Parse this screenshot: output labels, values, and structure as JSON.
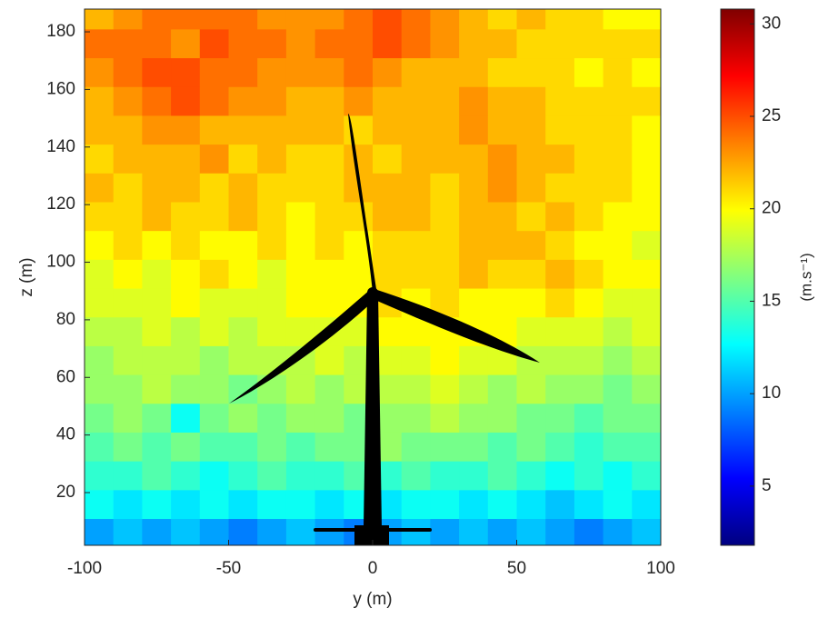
{
  "chart_data": {
    "type": "heatmap",
    "xlabel": "y (m)",
    "ylabel": "z (m)",
    "colorbar_label": "(m.s⁻¹)",
    "x": [
      -95,
      -85,
      -75,
      -65,
      -55,
      -45,
      -35,
      -25,
      -15,
      -5,
      5,
      15,
      25,
      35,
      45,
      55,
      65,
      75,
      85,
      95
    ],
    "y": [
      6,
      16,
      26,
      36,
      46,
      56,
      66,
      76,
      86,
      96,
      106,
      116,
      126,
      136,
      146,
      156,
      166,
      176,
      186
    ],
    "z": [
      [
        10,
        11,
        10,
        11,
        10,
        9,
        10,
        11,
        10,
        9,
        10,
        11,
        10,
        11,
        10,
        11,
        10,
        9,
        10,
        11
      ],
      [
        13,
        12,
        13,
        12,
        13,
        12,
        13,
        13,
        12,
        13,
        12,
        13,
        13,
        12,
        13,
        12,
        11,
        12,
        13,
        12
      ],
      [
        14,
        14,
        15,
        14,
        13,
        14,
        15,
        14,
        14,
        15,
        14,
        15,
        14,
        14,
        15,
        14,
        13,
        14,
        13,
        14
      ],
      [
        15,
        16,
        15,
        16,
        15,
        15,
        16,
        15,
        16,
        16,
        17,
        16,
        16,
        16,
        15,
        16,
        15,
        14,
        15,
        15
      ],
      [
        16,
        17,
        16,
        13,
        16,
        17,
        16,
        17,
        17,
        16,
        17,
        17,
        18,
        17,
        17,
        16,
        16,
        15,
        16,
        16
      ],
      [
        17,
        17,
        18,
        17,
        17,
        16,
        17,
        18,
        17,
        18,
        18,
        18,
        19,
        18,
        17,
        18,
        17,
        17,
        16,
        17
      ],
      [
        17,
        18,
        18,
        18,
        17,
        18,
        18,
        18,
        19,
        18,
        19,
        19,
        20,
        19,
        19,
        18,
        18,
        18,
        17,
        18
      ],
      [
        18,
        18,
        19,
        18,
        19,
        18,
        19,
        19,
        19,
        19,
        20,
        20,
        20,
        20,
        20,
        19,
        19,
        19,
        18,
        19
      ],
      [
        19,
        19,
        19,
        20,
        19,
        19,
        19,
        20,
        20,
        20,
        21,
        20,
        21,
        20,
        20,
        20,
        21,
        20,
        19,
        19
      ],
      [
        19,
        20,
        19,
        20,
        21,
        20,
        19,
        20,
        20,
        20,
        21,
        21,
        21,
        22,
        21,
        21,
        22,
        21,
        20,
        20
      ],
      [
        20,
        21,
        20,
        21,
        20,
        20,
        21,
        20,
        21,
        20,
        21,
        21,
        21,
        22,
        22,
        22,
        21,
        20,
        20,
        19
      ],
      [
        21,
        21,
        22,
        21,
        21,
        22,
        21,
        20,
        21,
        21,
        22,
        22,
        21,
        22,
        22,
        21,
        22,
        21,
        20,
        20
      ],
      [
        22,
        21,
        22,
        22,
        21,
        22,
        21,
        21,
        21,
        22,
        22,
        22,
        21,
        22,
        23,
        22,
        21,
        21,
        21,
        20
      ],
      [
        21,
        22,
        22,
        22,
        23,
        21,
        22,
        21,
        21,
        22,
        21,
        22,
        22,
        22,
        23,
        22,
        22,
        21,
        21,
        20
      ],
      [
        22,
        22,
        23,
        23,
        22,
        22,
        22,
        22,
        22,
        21,
        22,
        22,
        22,
        23,
        22,
        22,
        21,
        21,
        21,
        20
      ],
      [
        22,
        23,
        24,
        25,
        24,
        23,
        23,
        22,
        22,
        23,
        22,
        22,
        22,
        23,
        22,
        22,
        21,
        21,
        21,
        21
      ],
      [
        23,
        24,
        25,
        25,
        24,
        24,
        23,
        23,
        23,
        24,
        23,
        22,
        22,
        22,
        21,
        21,
        21,
        20,
        21,
        20
      ],
      [
        24,
        24,
        24,
        23,
        25,
        24,
        24,
        23,
        24,
        24,
        25,
        24,
        23,
        22,
        22,
        21,
        21,
        21,
        21,
        21
      ],
      [
        22,
        23,
        24,
        24,
        24,
        24,
        23,
        23,
        23,
        24,
        25,
        24,
        23,
        22,
        21,
        22,
        21,
        21,
        20,
        20
      ]
    ],
    "xlim": [
      -100,
      100
    ],
    "xticks": [
      -100,
      -50,
      0,
      50,
      100
    ],
    "ylim": [
      1.7,
      187.9
    ],
    "yticks": [
      20,
      40,
      60,
      80,
      100,
      120,
      140,
      160,
      180
    ],
    "clim": [
      1.8,
      30.8
    ],
    "cticks": [
      5,
      10,
      15,
      20,
      25,
      30
    ],
    "colormap": "jet"
  }
}
